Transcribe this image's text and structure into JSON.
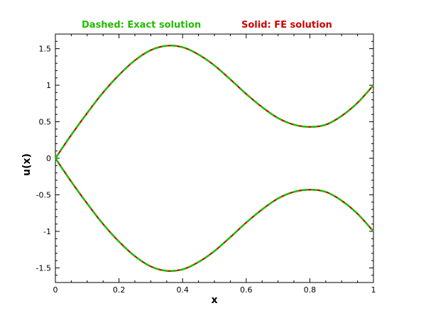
{
  "chart_data": {
    "type": "line",
    "title": "",
    "xlabel": "x",
    "ylabel": "u(x)",
    "xlim": [
      0,
      1
    ],
    "ylim": [
      -1.7,
      1.7
    ],
    "xticks": [
      0,
      0.2,
      0.4,
      0.6,
      0.8,
      1
    ],
    "xtick_labels": [
      "0",
      "0.2",
      "0.4",
      "0.6",
      "0.8",
      "1"
    ],
    "yticks": [
      -1.5,
      -1,
      -0.5,
      0,
      0.5,
      1,
      1.5
    ],
    "ytick_labels": [
      "-1.5",
      "-1",
      "-0.5",
      "0",
      "0.5",
      "1",
      "1.5"
    ],
    "grid": false,
    "legend": [
      {
        "text": "Dashed: Exact solution",
        "color": "#22bb00",
        "style": "dashed"
      },
      {
        "text": "Solid: FE solution",
        "color": "#cc0000",
        "style": "solid"
      }
    ],
    "legend_position": "top",
    "x": [
      0,
      0.05,
      0.1,
      0.15,
      0.2,
      0.25,
      0.3,
      0.35,
      0.4,
      0.45,
      0.5,
      0.55,
      0.6,
      0.65,
      0.7,
      0.75,
      0.8,
      0.85,
      0.9,
      0.95,
      1
    ],
    "series": [
      {
        "color": "#cc0000",
        "style": "solid",
        "values": [
          0,
          0.32,
          0.62,
          0.9,
          1.14,
          1.34,
          1.48,
          1.54,
          1.52,
          1.42,
          1.27,
          1.08,
          0.88,
          0.7,
          0.55,
          0.46,
          0.43,
          0.46,
          0.58,
          0.76,
          1.0
        ]
      },
      {
        "color": "#22bb00",
        "style": "dashed",
        "values": [
          0,
          0.32,
          0.62,
          0.9,
          1.14,
          1.34,
          1.48,
          1.54,
          1.52,
          1.42,
          1.27,
          1.08,
          0.88,
          0.7,
          0.55,
          0.46,
          0.43,
          0.46,
          0.58,
          0.76,
          1.0
        ]
      },
      {
        "color": "#cc0000",
        "style": "solid",
        "values": [
          0,
          -0.32,
          -0.62,
          -0.9,
          -1.14,
          -1.34,
          -1.48,
          -1.54,
          -1.52,
          -1.42,
          -1.27,
          -1.08,
          -0.88,
          -0.7,
          -0.55,
          -0.46,
          -0.43,
          -0.46,
          -0.58,
          -0.76,
          -1.0
        ]
      },
      {
        "color": "#22bb00",
        "style": "dashed",
        "values": [
          0,
          -0.32,
          -0.62,
          -0.9,
          -1.14,
          -1.34,
          -1.48,
          -1.54,
          -1.52,
          -1.42,
          -1.27,
          -1.08,
          -0.88,
          -0.7,
          -0.55,
          -0.46,
          -0.43,
          -0.46,
          -0.58,
          -0.76,
          -1.0
        ]
      }
    ]
  }
}
